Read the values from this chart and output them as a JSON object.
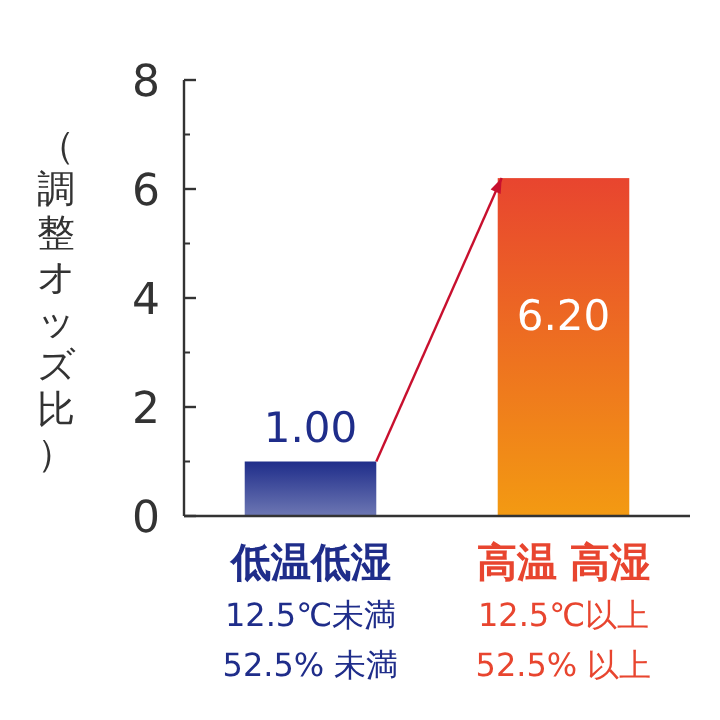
{
  "chart_data": {
    "type": "bar",
    "ylabel": "（調整オッズ比）",
    "categories": [
      "低温低湿\n12.5℃未満\n52.5% 未満",
      "高温 高湿\n12.5℃以上\n52.5% 以上"
    ],
    "values": [
      1.0,
      6.2
    ],
    "colors": [
      "#1f2d8a",
      "#e8452f"
    ],
    "value_labels": [
      "1.00",
      "6.20"
    ],
    "ylim": [
      0,
      8
    ],
    "yticks": [
      0,
      2,
      4,
      6,
      8
    ],
    "grid": false
  }
}
